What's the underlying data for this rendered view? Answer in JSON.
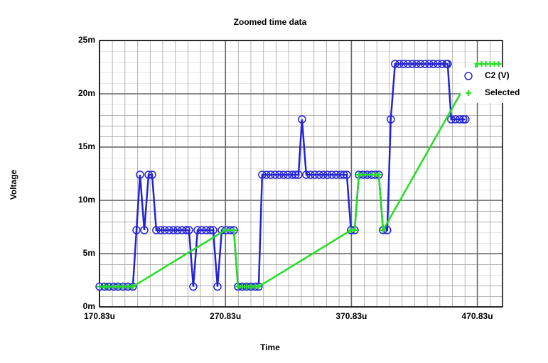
{
  "chart_data": {
    "type": "line",
    "title": "Zoomed time data",
    "xlabel": "Time",
    "ylabel": "Voltage",
    "xlim": [
      170.83,
      490.83
    ],
    "xticks": [
      {
        "value": 170.83,
        "label": "170.83u"
      },
      {
        "value": 270.83,
        "label": "270.83u"
      },
      {
        "value": 370.83,
        "label": "370.83u"
      },
      {
        "value": 470.83,
        "label": "470.83u"
      }
    ],
    "ylim": [
      0,
      25
    ],
    "yticks": [
      {
        "value": 0,
        "label": "0m"
      },
      {
        "value": 5,
        "label": "5m"
      },
      {
        "value": 10,
        "label": "10m"
      },
      {
        "value": 15,
        "label": "15m"
      },
      {
        "value": 20,
        "label": "20m"
      },
      {
        "value": 25,
        "label": "25m"
      }
    ],
    "grid": true,
    "legend": "upper right",
    "series": [
      {
        "name": "C2 (V)",
        "color": "#2323d6",
        "marker": "circle",
        "x": [
          170.83,
          174.8,
          178.2,
          182.1,
          185.5,
          189.5,
          193.4,
          197.3,
          200.2,
          203.0,
          206.4,
          209.8,
          212.6,
          215.9,
          219.4,
          222.7,
          226.1,
          229.5,
          232.9,
          236.3,
          239.7,
          241.9,
          245.3,
          248.7,
          252.1,
          255.5,
          258.8,
          261.1,
          264.5,
          267.9,
          271.3,
          274.6,
          277.5,
          280.8,
          284.2,
          287.6,
          291.0,
          294.4,
          297.2,
          300.0,
          303.4,
          306.8,
          310.2,
          313.6,
          317.0,
          320.3,
          323.7,
          326.5,
          328.8,
          331.6,
          335.0,
          338.4,
          341.8,
          345.2,
          348.5,
          351.9,
          355.3,
          358.7,
          362.1,
          364.9,
          367.2,
          370.5,
          373.4,
          376.8,
          380.1,
          383.5,
          386.9,
          389.7,
          392.6,
          396.0,
          399.3,
          402.1,
          405.5,
          408.9,
          412.3,
          415.7,
          419.1,
          422.5,
          425.8,
          429.2,
          432.6,
          436.0,
          439.4,
          442.8,
          446.2,
          447.3,
          450.1,
          453.5,
          456.9,
          459.7,
          461.4
        ],
        "values": [
          1.9,
          1.9,
          1.9,
          1.9,
          1.9,
          1.9,
          1.9,
          1.9,
          7.2,
          12.4,
          7.2,
          12.4,
          12.4,
          7.2,
          7.2,
          7.2,
          7.2,
          7.2,
          7.2,
          7.2,
          7.2,
          7.2,
          1.9,
          7.2,
          7.2,
          7.2,
          7.2,
          7.2,
          1.9,
          7.2,
          7.2,
          7.2,
          7.2,
          1.9,
          1.9,
          1.9,
          1.9,
          1.9,
          1.9,
          12.4,
          12.4,
          12.4,
          12.4,
          12.4,
          12.4,
          12.4,
          12.4,
          12.4,
          12.4,
          17.6,
          12.4,
          12.4,
          12.4,
          12.4,
          12.4,
          12.4,
          12.4,
          12.4,
          12.4,
          12.4,
          12.4,
          7.2,
          7.2,
          12.4,
          12.4,
          12.4,
          12.4,
          12.4,
          12.4,
          7.2,
          7.2,
          17.6,
          22.8,
          22.8,
          22.8,
          22.8,
          22.8,
          22.8,
          22.8,
          22.8,
          22.8,
          22.8,
          22.8,
          22.8,
          22.8,
          22.8,
          17.6,
          17.6,
          17.6,
          17.6,
          17.6
        ]
      },
      {
        "name": "Selected",
        "color": "#22e022",
        "marker": "plus",
        "x": [
          170.83,
          174.8,
          178.2,
          182.1,
          185.5,
          189.5,
          193.4,
          197.3,
          270.7,
          274.1,
          277.5,
          280.8,
          284.2,
          287.6,
          291.0,
          294.4,
          297.2,
          370.5,
          373.4,
          376.8,
          380.1,
          383.5,
          386.9,
          389.7,
          392.6,
          396.0,
          470.8,
          474.2,
          477.6,
          481.0,
          484.4,
          487.8
        ],
        "values": [
          1.9,
          1.9,
          1.9,
          1.9,
          1.9,
          1.9,
          1.9,
          1.9,
          7.2,
          7.2,
          7.2,
          1.9,
          1.9,
          1.9,
          1.9,
          1.9,
          1.9,
          7.2,
          7.2,
          12.4,
          12.4,
          12.4,
          12.4,
          12.4,
          12.4,
          7.2,
          22.8,
          22.8,
          22.8,
          22.8,
          22.8,
          22.8
        ]
      }
    ]
  }
}
